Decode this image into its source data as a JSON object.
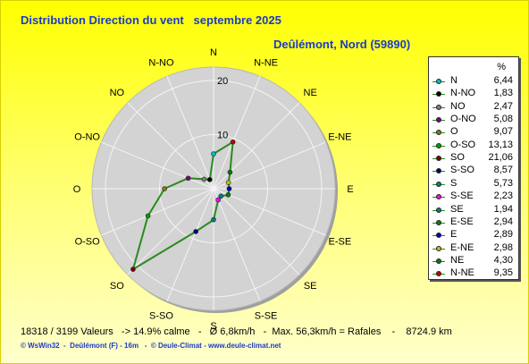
{
  "title": "Distribution Direction du vent   septembre 2025",
  "location": "Deûlémont, Nord (59890)",
  "stats": "18318 / 3199 Valeurs   -> 14.9% calme   -   Ø 6,8km/h   -  Max. 56,3km/h = Rafales    -    8724.9 km",
  "footer": "© WsWin32  -  Deûlémont (F) - 16m   -  © Deule-Climat - www.deule-climat.net",
  "colors": {
    "background": "#ffff00",
    "title": "#1a3bc8",
    "disc": "#d3d3d3",
    "series": "#2a8a1e"
  },
  "chart_data": {
    "type": "radar",
    "unit": "%",
    "rmax": 20,
    "rings": [
      10,
      20
    ],
    "series_color": "#2a8a1e",
    "directions": [
      "N",
      "N-NE",
      "NE",
      "E-NE",
      "E",
      "E-SE",
      "SE",
      "S-SE",
      "S",
      "S-SO",
      "SO",
      "O-SO",
      "O",
      "O-NO",
      "NO",
      "N-NO"
    ],
    "legend": [
      {
        "dir": "N",
        "value": 6.44,
        "marker": "#00c0c0"
      },
      {
        "dir": "N-NO",
        "value": 1.83,
        "marker": "#000000"
      },
      {
        "dir": "NO",
        "value": 2.47,
        "marker": "#808080"
      },
      {
        "dir": "O-NO",
        "value": 5.08,
        "marker": "#800080"
      },
      {
        "dir": "O",
        "value": 9.07,
        "marker": "#808000"
      },
      {
        "dir": "O-SO",
        "value": 13.13,
        "marker": "#00a000"
      },
      {
        "dir": "SO",
        "value": 21.06,
        "marker": "#800000"
      },
      {
        "dir": "S-SO",
        "value": 8.57,
        "marker": "#000080"
      },
      {
        "dir": "S",
        "value": 5.73,
        "marker": "#008080"
      },
      {
        "dir": "S-SE",
        "value": 2.23,
        "marker": "#ff00ff"
      },
      {
        "dir": "SE",
        "value": 1.94,
        "marker": "#008080"
      },
      {
        "dir": "E-SE",
        "value": 2.94,
        "marker": "#008000"
      },
      {
        "dir": "E",
        "value": 2.89,
        "marker": "#0000c0"
      },
      {
        "dir": "E-NE",
        "value": 2.98,
        "marker": "#c0c000"
      },
      {
        "dir": "NE",
        "value": 4.3,
        "marker": "#008000"
      },
      {
        "dir": "N-NE",
        "value": 9.35,
        "marker": "#c00000"
      }
    ]
  }
}
